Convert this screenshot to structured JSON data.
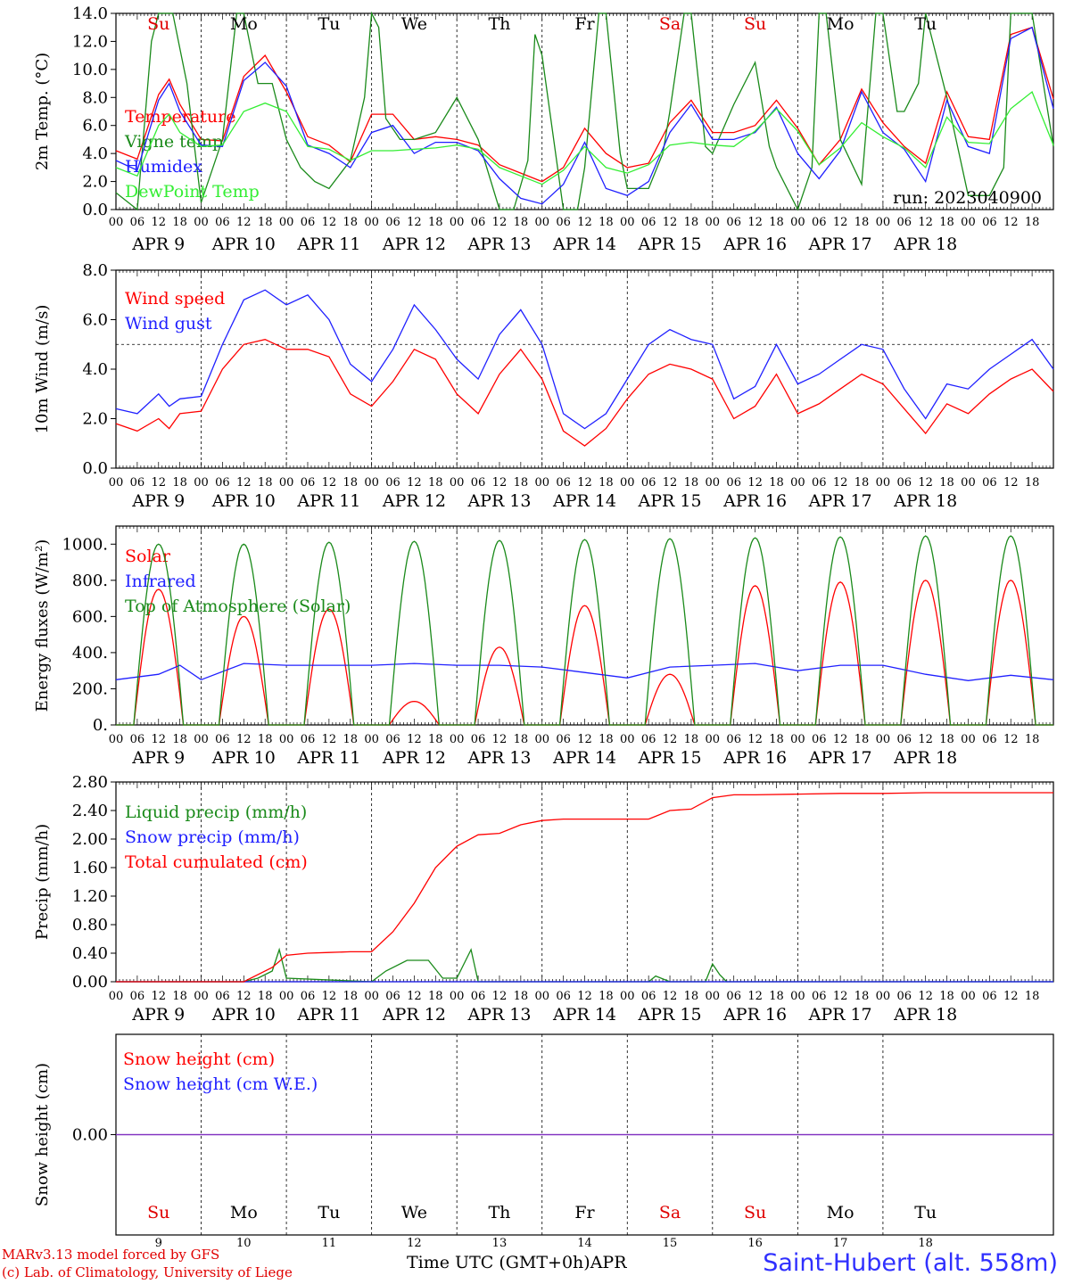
{
  "chart_data": [
    {
      "type": "line",
      "ylabel": "2m Temp. (°C)",
      "ylim": [
        0,
        14
      ],
      "yticks": [
        "0.0",
        "2.0",
        "4.0",
        "6.0",
        "8.0",
        "10.0",
        "12.0",
        "14.0"
      ],
      "run_label": "run: 2023040900",
      "series": [
        {
          "name": "Temperature",
          "color": "#ff0000",
          "hours": [
            0,
            6,
            12,
            15,
            18,
            24,
            30,
            36,
            42,
            48,
            54,
            60,
            66,
            72,
            78,
            84,
            90,
            96,
            102,
            108,
            114,
            120,
            126,
            132,
            138,
            144,
            150,
            156,
            162,
            168,
            174,
            180,
            186,
            192,
            198,
            204,
            210,
            216,
            222,
            228,
            234,
            240,
            246,
            252,
            258,
            264
          ],
          "values": [
            4.2,
            3.6,
            8.2,
            9.3,
            7.5,
            5.0,
            4.9,
            9.5,
            11.0,
            8.4,
            5.2,
            4.6,
            3.4,
            6.8,
            6.8,
            5.0,
            5.2,
            5.0,
            4.6,
            3.2,
            2.6,
            2.0,
            3.0,
            5.8,
            4.0,
            3.0,
            3.3,
            6.2,
            7.8,
            5.5,
            5.5,
            6.0,
            7.8,
            5.8,
            3.2,
            5.0,
            8.6,
            6.2,
            4.5,
            3.3,
            8.4,
            5.2,
            5.0,
            12.5,
            13.0,
            7.9
          ]
        },
        {
          "name": "Vigne temp",
          "color": "#1a8a1a",
          "hours": [
            0,
            6,
            10,
            12,
            16,
            20,
            24,
            30,
            34,
            36,
            40,
            44,
            48,
            52,
            56,
            60,
            66,
            70,
            72,
            74,
            76,
            80,
            84,
            90,
            96,
            100,
            102,
            108,
            112,
            116,
            118,
            120,
            126,
            130,
            132,
            136,
            138,
            142,
            144,
            150,
            154,
            156,
            160,
            162,
            166,
            168,
            174,
            180,
            184,
            186,
            192,
            196,
            198,
            200,
            204,
            210,
            214,
            216,
            220,
            222,
            226,
            228,
            234,
            240,
            246,
            250,
            252,
            258,
            264
          ],
          "values": [
            1.2,
            0,
            12,
            14,
            14,
            9,
            0.5,
            5,
            14,
            14,
            9,
            9,
            5,
            3,
            2,
            1.5,
            3.5,
            8,
            14,
            13,
            6.5,
            5,
            5,
            5.5,
            8,
            6,
            5,
            0,
            0,
            3.5,
            12.5,
            11,
            0,
            0,
            3,
            14,
            14,
            4,
            1.5,
            1.5,
            4,
            7,
            14,
            14,
            4.5,
            4,
            7.5,
            10.5,
            4.5,
            3,
            0,
            3,
            14,
            14,
            5,
            1.8,
            14,
            14,
            7,
            7,
            9,
            14,
            8,
            1,
            1,
            3,
            14,
            14,
            4.5
          ]
        },
        {
          "name": "Humidex",
          "color": "#2020ff",
          "hours": [
            0,
            6,
            12,
            15,
            18,
            24,
            30,
            36,
            42,
            48,
            54,
            60,
            66,
            72,
            78,
            84,
            90,
            96,
            102,
            108,
            114,
            120,
            126,
            132,
            138,
            144,
            150,
            156,
            162,
            168,
            174,
            180,
            186,
            192,
            198,
            204,
            210,
            216,
            222,
            228,
            234,
            240,
            246,
            252,
            258,
            264
          ],
          "values": [
            3.5,
            2.8,
            7.8,
            9.0,
            7.0,
            4.6,
            4.5,
            9.2,
            10.5,
            8.8,
            4.6,
            4.0,
            3.0,
            5.5,
            6.0,
            4.0,
            4.8,
            4.8,
            4.2,
            2.2,
            0.8,
            0.4,
            1.8,
            4.8,
            1.5,
            1.0,
            2.0,
            5.5,
            7.5,
            5.0,
            5.0,
            5.5,
            7.3,
            4.0,
            2.2,
            4.2,
            8.4,
            5.5,
            4.3,
            2.0,
            7.8,
            4.5,
            4.0,
            12.2,
            13.0,
            7.2
          ]
        },
        {
          "name": "DewPoint Temp",
          "color": "#33ee33",
          "hours": [
            0,
            6,
            12,
            15,
            18,
            24,
            30,
            36,
            42,
            48,
            54,
            60,
            66,
            72,
            78,
            84,
            90,
            96,
            102,
            108,
            114,
            120,
            126,
            132,
            138,
            144,
            150,
            156,
            162,
            168,
            174,
            180,
            186,
            192,
            198,
            204,
            210,
            216,
            222,
            228,
            234,
            240,
            246,
            252,
            258,
            264
          ],
          "values": [
            3.0,
            2.4,
            6.0,
            6.8,
            5.5,
            4.5,
            4.6,
            7.0,
            7.6,
            7.0,
            4.5,
            4.3,
            3.5,
            4.2,
            4.2,
            4.3,
            4.4,
            4.6,
            4.3,
            3.0,
            2.4,
            1.8,
            2.8,
            4.5,
            3.0,
            2.6,
            3.2,
            4.6,
            4.8,
            4.6,
            4.5,
            5.6,
            7.2,
            5.6,
            3.2,
            4.4,
            6.2,
            5.2,
            4.4,
            3.0,
            6.6,
            4.8,
            4.7,
            7.2,
            8.4,
            4.6
          ]
        }
      ]
    },
    {
      "type": "line",
      "ylabel": "10m Wind (m/s)",
      "ylim": [
        0,
        8
      ],
      "yticks": [
        "0.0",
        "2.0",
        "4.0",
        "6.0",
        "8.0"
      ],
      "reference_line": 5.0,
      "series": [
        {
          "name": "Wind speed",
          "color": "#ff0000",
          "hours": [
            0,
            6,
            12,
            15,
            18,
            24,
            30,
            36,
            42,
            48,
            54,
            60,
            66,
            72,
            78,
            84,
            90,
            96,
            102,
            108,
            114,
            120,
            126,
            132,
            138,
            144,
            150,
            156,
            162,
            168,
            174,
            180,
            186,
            192,
            198,
            204,
            210,
            216,
            222,
            228,
            234,
            240,
            246,
            252,
            258,
            264
          ],
          "values": [
            1.8,
            1.5,
            2.0,
            1.6,
            2.2,
            2.3,
            4.0,
            5.0,
            5.2,
            4.8,
            4.8,
            4.5,
            3.0,
            2.5,
            3.5,
            4.8,
            4.4,
            3.0,
            2.2,
            3.8,
            4.8,
            3.6,
            1.5,
            0.9,
            1.6,
            2.8,
            3.8,
            4.2,
            4.0,
            3.6,
            2.0,
            2.5,
            3.8,
            2.2,
            2.6,
            3.2,
            3.8,
            3.4,
            2.4,
            1.4,
            2.6,
            2.2,
            3.0,
            3.6,
            4.0,
            3.1
          ]
        },
        {
          "name": "Wind gust",
          "color": "#2020ff",
          "hours": [
            0,
            6,
            12,
            15,
            18,
            24,
            30,
            36,
            42,
            48,
            54,
            60,
            66,
            72,
            78,
            84,
            90,
            96,
            102,
            108,
            114,
            120,
            126,
            132,
            138,
            144,
            150,
            156,
            162,
            168,
            174,
            180,
            186,
            192,
            198,
            204,
            210,
            216,
            222,
            228,
            234,
            240,
            246,
            252,
            258,
            264
          ],
          "values": [
            2.4,
            2.2,
            3.0,
            2.5,
            2.8,
            2.9,
            5.0,
            6.8,
            7.2,
            6.6,
            7.0,
            6.0,
            4.2,
            3.5,
            4.8,
            6.6,
            5.6,
            4.4,
            3.6,
            5.4,
            6.4,
            5.0,
            2.2,
            1.6,
            2.2,
            3.6,
            5.0,
            5.6,
            5.2,
            5.0,
            2.8,
            3.3,
            5.0,
            3.4,
            3.8,
            4.4,
            5.0,
            4.8,
            3.2,
            2.0,
            3.4,
            3.2,
            4.0,
            4.6,
            5.2,
            4.0
          ]
        }
      ]
    },
    {
      "type": "line",
      "ylabel": "Energy fluxes (W/m²)",
      "ylim": [
        0,
        1100
      ],
      "yticks": [
        "0.",
        "200.",
        "400.",
        "600.",
        "800.",
        "1000."
      ],
      "series": [
        {
          "name": "Solar",
          "color": "#ff0000",
          "peaks": [
            750,
            600,
            640,
            130,
            430,
            660,
            280,
            770,
            790,
            800
          ]
        },
        {
          "name": "Infrared",
          "color": "#2020ff",
          "hours": [
            0,
            12,
            18,
            24,
            36,
            48,
            60,
            72,
            84,
            96,
            108,
            120,
            132,
            144,
            156,
            168,
            180,
            192,
            204,
            216,
            228,
            240,
            252,
            264
          ],
          "values": [
            250,
            280,
            330,
            250,
            340,
            330,
            330,
            330,
            340,
            330,
            330,
            320,
            290,
            260,
            320,
            330,
            340,
            300,
            330,
            330,
            280,
            245,
            275,
            250
          ]
        },
        {
          "name": "Top of Atmosphere (Solar)",
          "color": "#1a8a1a",
          "peaks": [
            1000,
            1000,
            1010,
            1015,
            1020,
            1025,
            1030,
            1035,
            1040,
            1045
          ]
        }
      ]
    },
    {
      "type": "line",
      "ylabel": "Precip (mm/h)",
      "ylim": [
        0,
        2.8
      ],
      "yticks": [
        "0.00",
        "0.40",
        "0.80",
        "1.20",
        "1.60",
        "2.00",
        "2.40",
        "2.80"
      ],
      "series": [
        {
          "name": "Liquid precip (mm/h)",
          "color": "#1a8a1a",
          "hours": [
            0,
            36,
            40,
            44,
            46,
            48,
            72,
            76,
            82,
            88,
            92,
            96,
            100,
            102,
            104,
            110,
            150,
            152,
            156,
            166,
            168,
            170,
            172,
            264
          ],
          "values": [
            0,
            0,
            0.05,
            0.15,
            0.45,
            0.05,
            0,
            0.15,
            0.3,
            0.3,
            0.05,
            0.05,
            0.45,
            0,
            0,
            0,
            0,
            0.08,
            0,
            0,
            0.25,
            0.1,
            0,
            0
          ]
        },
        {
          "name": "Snow precip (mm/h)",
          "color": "#2020ff",
          "hours": [
            0,
            264
          ],
          "values": [
            0,
            0
          ]
        },
        {
          "name": "Total cumulated (cm)",
          "color": "#ff0000",
          "hours": [
            0,
            36,
            44,
            48,
            54,
            60,
            66,
            72,
            78,
            84,
            90,
            96,
            102,
            108,
            114,
            120,
            126,
            132,
            138,
            144,
            150,
            156,
            162,
            168,
            174,
            180,
            192,
            204,
            216,
            228,
            240,
            252,
            264
          ],
          "values": [
            0,
            0,
            0.2,
            0.37,
            0.4,
            0.41,
            0.42,
            0.42,
            0.7,
            1.1,
            1.6,
            1.9,
            2.06,
            2.08,
            2.2,
            2.26,
            2.28,
            2.28,
            2.28,
            2.28,
            2.28,
            2.4,
            2.42,
            2.58,
            2.62,
            2.62,
            2.63,
            2.64,
            2.64,
            2.65,
            2.65,
            2.65,
            2.65
          ]
        }
      ]
    },
    {
      "type": "line",
      "ylabel": "Snow height (cm)",
      "yticks": [
        "0.00"
      ],
      "series": [
        {
          "name": "Snow height (cm)",
          "color": "#ff0000",
          "hours": [
            0,
            264
          ],
          "values": [
            0,
            0
          ]
        },
        {
          "name": "Snow height (cm W.E.)",
          "color": "#2020ff",
          "hours": [
            0,
            264
          ],
          "values": [
            0,
            0
          ]
        }
      ]
    }
  ],
  "x_axis": {
    "hour_ticks": [
      "00",
      "06",
      "12",
      "18"
    ],
    "days": [
      "APR  9",
      "APR 10",
      "APR 11",
      "APR 12",
      "APR 13",
      "APR 14",
      "APR 15",
      "APR 16",
      "APR 17",
      "APR 18"
    ],
    "weekdays": [
      "Su",
      "Mo",
      "Tu",
      "We",
      "Th",
      "Fr",
      "Sa",
      "Su",
      "Mo",
      "Tu"
    ],
    "weekday_colors": [
      "#e00000",
      "#000000",
      "#000000",
      "#000000",
      "#000000",
      "#000000",
      "#e00000",
      "#e00000",
      "#000000",
      "#000000"
    ],
    "day_numbers": [
      "9",
      "10",
      "11",
      "12",
      "13",
      "14",
      "15",
      "16",
      "17",
      "18"
    ]
  },
  "footer": {
    "model_credit": "MARv3.13 model forced by GFS",
    "lab_credit": "(c) Lab. of Climatology, University of Liege",
    "time_label": "Time UTC (GMT+0h)",
    "month_label": "APR",
    "station": "Saint-Hubert (alt. 558m)"
  }
}
